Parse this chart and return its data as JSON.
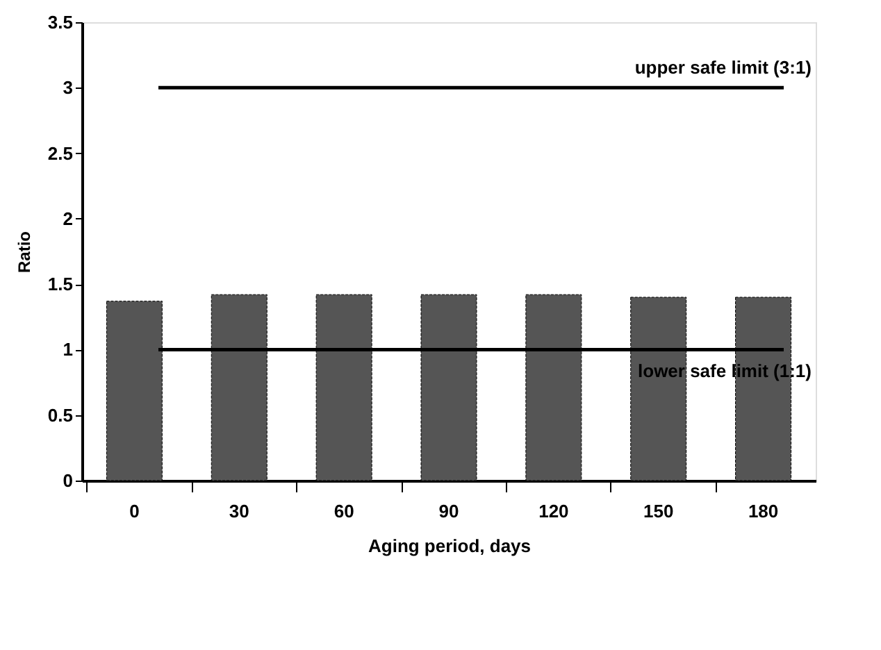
{
  "chart_data": {
    "type": "bar",
    "xlabel": "Aging period, days",
    "ylabel": "Ratio",
    "categories": [
      "0",
      "30",
      "60",
      "90",
      "120",
      "150",
      "180"
    ],
    "values": [
      1.37,
      1.42,
      1.42,
      1.42,
      1.42,
      1.4,
      1.4
    ],
    "color": "#555555",
    "ylim": [
      0,
      3.5
    ],
    "yticks": [
      0,
      0.5,
      1,
      1.5,
      2,
      2.5,
      3,
      3.5
    ],
    "grid": false,
    "ref_lines": [
      {
        "axis": "y",
        "value": 3,
        "label": "upper safe limit (3:1)",
        "color": "#000000"
      },
      {
        "axis": "y",
        "value": 1,
        "label": "lower safe limit (1:1)",
        "color": "#000000"
      }
    ]
  }
}
